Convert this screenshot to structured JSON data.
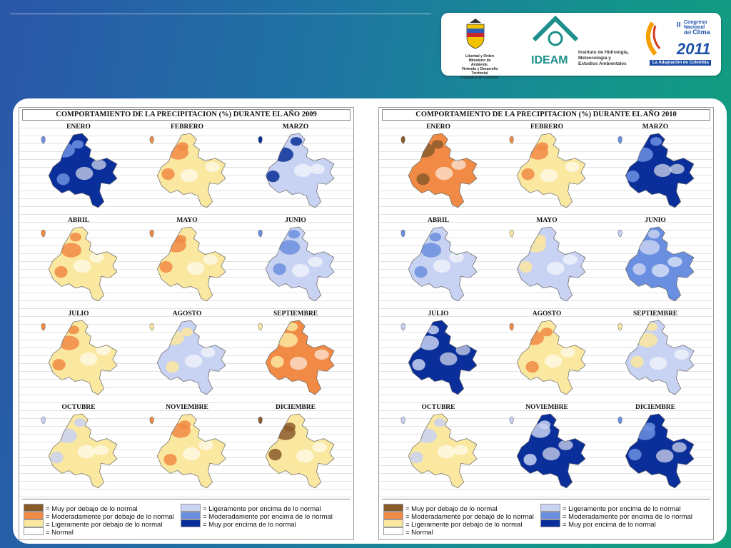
{
  "colors": {
    "muy_debajo": "#8a5a2b",
    "moderado_debajo": "#f08a44",
    "ligero_debajo": "#fbe8a0",
    "normal": "#ffffff",
    "ligero_encima": "#c8d2f2",
    "moderado_encima": "#6b8fe0",
    "muy_encima": "#0a2f9a"
  },
  "header": {
    "ministry_lines": [
      "Libertad y Orden",
      "Ministerio de Ambiente,",
      "Vivienda y Desarrollo Territorial",
      "República de Colombia"
    ],
    "ideam_name": "IDEAM",
    "ideam_lines": [
      "Instituto de Hidrología,",
      "Meteorología y",
      "Estudios Ambientales"
    ],
    "congreso_lines": [
      "II",
      "Congreso",
      "Nacional",
      "del",
      "Clima",
      "2011"
    ],
    "congreso_banner": "La Adaptación de Colombia"
  },
  "panels": [
    {
      "title": "COMPORTAMIENTO DE LA PRECIPITACION (%) DURANTE EL AÑO 2009",
      "months": [
        {
          "label": "ENERO",
          "dominant": "muy_encima",
          "accent": "moderado_encima"
        },
        {
          "label": "FEBRERO",
          "dominant": "ligero_debajo",
          "accent": "moderado_debajo"
        },
        {
          "label": "MARZO",
          "dominant": "ligero_encima",
          "accent": "muy_encima"
        },
        {
          "label": "ABRIL",
          "dominant": "ligero_debajo",
          "accent": "moderado_debajo"
        },
        {
          "label": "MAYO",
          "dominant": "ligero_debajo",
          "accent": "moderado_debajo"
        },
        {
          "label": "JUNIO",
          "dominant": "ligero_encima",
          "accent": "moderado_encima"
        },
        {
          "label": "JULIO",
          "dominant": "ligero_debajo",
          "accent": "moderado_debajo"
        },
        {
          "label": "AGOSTO",
          "dominant": "ligero_encima",
          "accent": "ligero_debajo"
        },
        {
          "label": "SEPTIEMBRE",
          "dominant": "moderado_debajo",
          "accent": "ligero_debajo"
        },
        {
          "label": "OCTUBRE",
          "dominant": "ligero_debajo",
          "accent": "ligero_encima"
        },
        {
          "label": "NOVIEMBRE",
          "dominant": "ligero_debajo",
          "accent": "moderado_debajo"
        },
        {
          "label": "DICIEMBRE",
          "dominant": "ligero_debajo",
          "accent": "muy_debajo"
        }
      ],
      "legend": [
        {
          "key": "muy_debajo",
          "label": "= Muy por debajo de lo normal"
        },
        {
          "key": "moderado_debajo",
          "label": "= Moderadamente por debajo de lo normal"
        },
        {
          "key": "ligero_debajo",
          "label": "= Ligeramente por debajo de lo normal"
        },
        {
          "key": "normal",
          "label": "= Normal"
        },
        {
          "key": "ligero_encima",
          "label": "= Ligeramente por encima de lo normal"
        },
        {
          "key": "moderado_encima",
          "label": "= Moderadamente por encima de lo normal"
        },
        {
          "key": "muy_encima",
          "label": "= Muy por encima de lo normal"
        }
      ]
    },
    {
      "title": "COMPORTAMIENTO DE LA PRECIPITACION (%) DURANTE EL AÑO 2010",
      "months": [
        {
          "label": "ENERO",
          "dominant": "moderado_debajo",
          "accent": "muy_debajo"
        },
        {
          "label": "FEBRERO",
          "dominant": "ligero_debajo",
          "accent": "moderado_debajo"
        },
        {
          "label": "MARZO",
          "dominant": "muy_encima",
          "accent": "moderado_encima"
        },
        {
          "label": "ABRIL",
          "dominant": "ligero_encima",
          "accent": "moderado_encima"
        },
        {
          "label": "MAYO",
          "dominant": "ligero_encima",
          "accent": "ligero_debajo"
        },
        {
          "label": "JUNIO",
          "dominant": "moderado_encima",
          "accent": "ligero_encima"
        },
        {
          "label": "JULIO",
          "dominant": "muy_encima",
          "accent": "ligero_encima"
        },
        {
          "label": "AGOSTO",
          "dominant": "ligero_debajo",
          "accent": "moderado_debajo"
        },
        {
          "label": "SEPTIEMBRE",
          "dominant": "ligero_encima",
          "accent": "ligero_debajo"
        },
        {
          "label": "OCTUBRE",
          "dominant": "ligero_debajo",
          "accent": "ligero_encima"
        },
        {
          "label": "NOVIEMBRE",
          "dominant": "muy_encima",
          "accent": "ligero_encima"
        },
        {
          "label": "DICIEMBRE",
          "dominant": "muy_encima",
          "accent": "moderado_encima"
        }
      ],
      "legend": [
        {
          "key": "muy_debajo",
          "label": "= Muy por debajo de lo normal"
        },
        {
          "key": "moderado_debajo",
          "label": "= Moderadamente por debajo de lo normal"
        },
        {
          "key": "ligero_debajo",
          "label": "= Ligeramente por debajo de lo normal"
        },
        {
          "key": "normal",
          "label": "= Normal"
        },
        {
          "key": "ligero_encima",
          "label": "= Ligeramente por encima de lo normal"
        },
        {
          "key": "moderado_encima",
          "label": "= Moderadamente por encima de lo normal"
        },
        {
          "key": "muy_encima",
          "label": "= Muy por encima de lo normal"
        }
      ]
    }
  ]
}
